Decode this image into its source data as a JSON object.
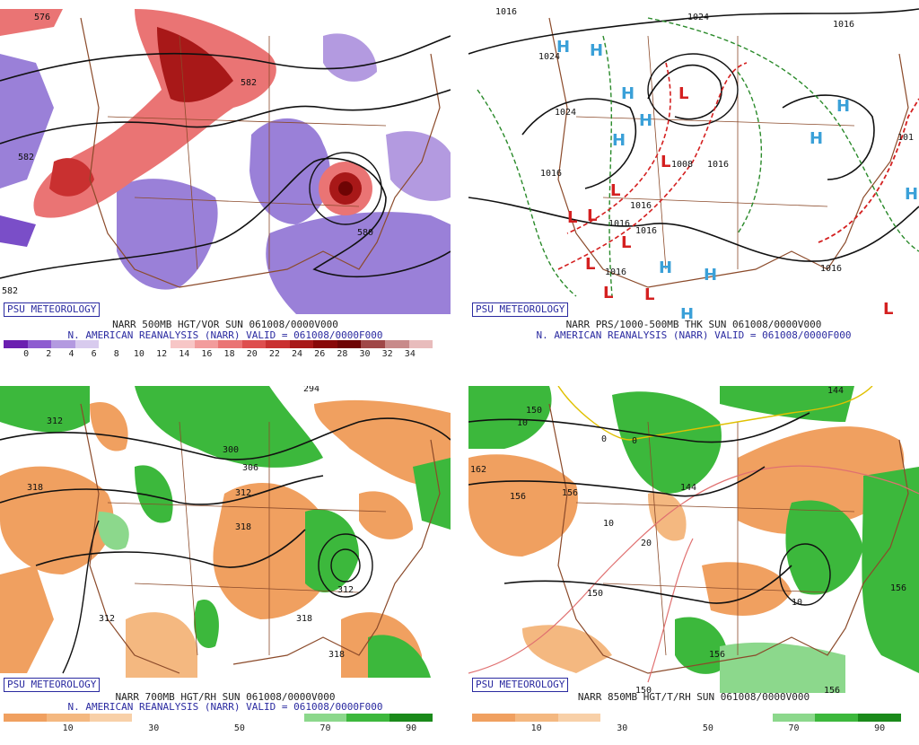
{
  "panels": [
    {
      "title_line1": "NARR 500MB HGT/VOR SUN 061008/0000V000",
      "title_line2": "N. AMERICAN REANALYSIS (NARR) VALID = 061008/0000F000",
      "logo": "PSU METEOROLOGY",
      "contour_labels": [
        "576",
        "582",
        "582",
        "582",
        "580"
      ],
      "colorbar": {
        "ticks": [
          "0",
          "2",
          "4",
          "6",
          "8",
          "10",
          "12",
          "14",
          "16",
          "18",
          "20",
          "22",
          "24",
          "26",
          "28",
          "30",
          "32",
          "34"
        ],
        "colors": [
          "#6b1fb0",
          "#8e5cd0",
          "#b39ae0",
          "#d8cbee",
          "#ffffff",
          "#ffffff",
          "#ffffff",
          "#f7c6c6",
          "#f29c9c",
          "#ea7474",
          "#de4e4e",
          "#c93030",
          "#a81818",
          "#880808",
          "#6e0404",
          "#a04848",
          "#c88a8a",
          "#e8bcbc"
        ]
      }
    },
    {
      "title_line1": "NARR PRS/1000-500MB THK SUN 061008/0000V000",
      "title_line2": "N. AMERICAN REANALYSIS (NARR) VALID = 061008/0000F000",
      "logo": "PSU METEOROLOGY",
      "contour_labels": [
        "1016",
        "1024",
        "1024",
        "1024",
        "1016",
        "1016",
        "1008",
        "1016",
        "1016",
        "1016",
        "1016",
        "1016",
        "101",
        "1016"
      ],
      "high_symbol": "H",
      "low_symbol": "L"
    },
    {
      "title_line1": "NARR 700MB HGT/RH SUN 061008/0000V000",
      "title_line2": "N. AMERICAN REANALYSIS (NARR) VALID = 061008/0000F000",
      "logo": "PSU METEOROLOGY",
      "contour_labels": [
        "312",
        "318",
        "300",
        "306",
        "312",
        "318",
        "312",
        "318",
        "318",
        "294",
        "312"
      ],
      "colorbar": {
        "ticks": [
          "10",
          "30",
          "50",
          "70",
          "90"
        ],
        "colors": [
          "#f0a060",
          "#f4b880",
          "#f8d0a8",
          "#ffffff",
          "#ffffff",
          "#ffffff",
          "#ffffff",
          "#8cd88c",
          "#3cb83c",
          "#1a8a1a"
        ]
      }
    },
    {
      "title_line1": "NARR 850MB HGT/T/RH SUN 061008/0000V000",
      "logo": "PSU METEOROLOGY",
      "contour_labels": [
        "144",
        "150",
        "162",
        "156",
        "156",
        "144",
        "150",
        "156",
        "150",
        "156",
        "156",
        "10",
        "10",
        "20",
        "10",
        "0",
        "0"
      ],
      "colorbar": {
        "ticks": [
          "10",
          "30",
          "50",
          "70",
          "90"
        ],
        "colors": [
          "#f0a060",
          "#f4b880",
          "#f8d0a8",
          "#ffffff",
          "#ffffff",
          "#ffffff",
          "#ffffff",
          "#8cd88c",
          "#3cb83c",
          "#1a8a1a"
        ]
      }
    }
  ]
}
